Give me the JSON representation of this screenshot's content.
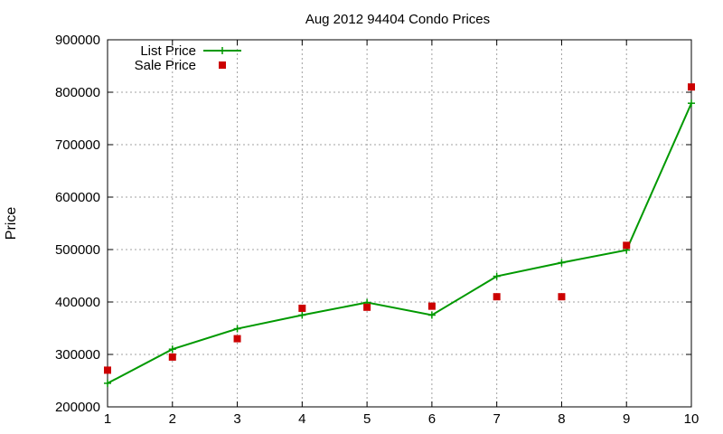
{
  "chart_data": {
    "type": "line",
    "title": "Aug 2012 94404 Condo Prices",
    "xlabel": "",
    "ylabel": "Price",
    "x": [
      1,
      2,
      3,
      4,
      5,
      6,
      7,
      8,
      9,
      10
    ],
    "xlim": [
      1,
      10
    ],
    "ylim": [
      200000,
      900000
    ],
    "xticks": [
      1,
      2,
      3,
      4,
      5,
      6,
      7,
      8,
      9,
      10
    ],
    "yticks": [
      200000,
      300000,
      400000,
      500000,
      600000,
      700000,
      800000,
      900000
    ],
    "grid": true,
    "legend_position": "top-left",
    "series": [
      {
        "name": "List Price",
        "style": "line-with-plus-markers",
        "color": "#009900",
        "values": [
          245000,
          310000,
          349000,
          375000,
          399000,
          375000,
          449000,
          475000,
          499000,
          779000
        ]
      },
      {
        "name": "Sale Price",
        "style": "square-markers",
        "color": "#cc0000",
        "values": [
          270000,
          295000,
          330000,
          388000,
          390000,
          392000,
          410000,
          410000,
          508000,
          810000
        ]
      }
    ]
  }
}
